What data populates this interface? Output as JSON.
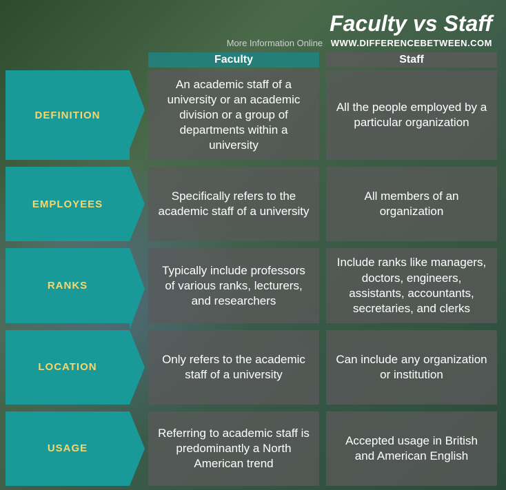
{
  "header": {
    "title": "Faculty vs Staff",
    "more_info": "More Information   Online",
    "url": "WWW.DIFFERENCEBETWEEN.COM"
  },
  "columns": {
    "left": "Faculty",
    "right": "Staff"
  },
  "rows": [
    {
      "label": "DEFINITION",
      "faculty": "An academic staff of a university or an academic division or a group of departments within a university",
      "staff": "All the people employed by a particular organization"
    },
    {
      "label": "EMPLOYEES",
      "faculty": "Specifically refers to the academic staff of a university",
      "staff": "All members of an organization"
    },
    {
      "label": "RANKS",
      "faculty": "Typically include professors of various ranks, lecturers, and researchers",
      "staff": "Include ranks like managers, doctors, engineers, assistants, accountants, secretaries, and clerks"
    },
    {
      "label": "LOCATION",
      "faculty": "Only refers to the academic staff of a university",
      "staff": "Can include any organization or institution"
    },
    {
      "label": "USAGE",
      "faculty": "Referring to academic staff is  predominantly a North American trend",
      "staff": "Accepted usage in British and American English"
    }
  ],
  "colors": {
    "label_bg": "#1a9999",
    "label_text": "#f5d76e",
    "cell_bg": "rgba(90,90,90,0.78)",
    "cell_text": "#ffffff",
    "header_faculty_bg": "rgba(30,130,130,0.85)",
    "title_color": "#ffffff"
  },
  "typography": {
    "title_size": 32,
    "label_size": 15,
    "cell_size": 17,
    "colhead_size": 16
  }
}
